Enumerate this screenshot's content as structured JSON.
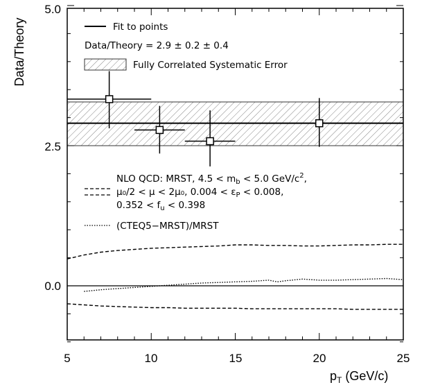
{
  "chart_data": {
    "type": "scatter",
    "xlabel": "p",
    "xlabel_sub": "T",
    "xlabel_unit": " (GeV/c)",
    "ylabel": "Data/Theory",
    "xlim": [
      5,
      25
    ],
    "ylim": [
      -1.3,
      5.0
    ],
    "x_ticks": [
      5,
      10,
      15,
      20,
      25
    ],
    "x_tick_labels": [
      "5",
      "10",
      "15",
      "20",
      "25"
    ],
    "y_tick_values": [
      0.0,
      2.5,
      5.0
    ],
    "y_tick_labels": [
      "0.0",
      "2.5",
      "5.0"
    ],
    "grid": false,
    "legend": {
      "fit": "Fit to points",
      "ratio": "Data/Theory = 2.9 ± 0.2 ± 0.4",
      "band": "Fully Correlated Systematic Error",
      "nlo_line1": "NLO QCD: MRST, 4.5 < m",
      "nlo_line1_sub": "b",
      "nlo_line1_tail": " < 5.0 GeV/c",
      "nlo_line1_sup": "2",
      "nlo_line1_end": ",",
      "nlo_line2": "μ₀/2 < μ < 2μ₀, 0.004 < ε",
      "nlo_line2_sub": "P",
      "nlo_line2_tail": " < 0.008,",
      "nlo_line3": "0.352 < f",
      "nlo_line3_sub": "u",
      "nlo_line3_tail": " < 0.398",
      "cteq": "(CTEQ5−MRST)/MRST"
    },
    "fit_value": 2.9,
    "band": [
      2.5,
      3.28
    ],
    "points": [
      {
        "x": 7.5,
        "y": 3.33,
        "xerr": 2.5,
        "yerr_low": 0.52,
        "yerr_high": 0.5
      },
      {
        "x": 10.5,
        "y": 2.78,
        "xerr": 1.5,
        "yerr_low": 0.42,
        "yerr_high": 0.43
      },
      {
        "x": 13.5,
        "y": 2.58,
        "xerr": 1.5,
        "yerr_low": 0.45,
        "yerr_high": 0.55
      },
      {
        "x": 20.0,
        "y": 2.9,
        "xerr": 5.0,
        "yerr_low": 0.42,
        "yerr_high": 0.45
      }
    ],
    "series": [
      {
        "name": "NLO QCD upper",
        "style": "dashed",
        "x": [
          5,
          6,
          7,
          8,
          9,
          10,
          11,
          12,
          13,
          14,
          15,
          16,
          17,
          18,
          19,
          20,
          21,
          22,
          23,
          24,
          25
        ],
        "y": [
          0.48,
          0.55,
          0.6,
          0.63,
          0.65,
          0.67,
          0.68,
          0.69,
          0.7,
          0.71,
          0.73,
          0.73,
          0.72,
          0.72,
          0.71,
          0.71,
          0.72,
          0.73,
          0.73,
          0.74,
          0.74
        ]
      },
      {
        "name": "NLO QCD lower",
        "style": "dashed",
        "x": [
          5,
          6,
          7,
          8,
          9,
          10,
          11,
          12,
          13,
          14,
          15,
          16,
          17,
          18,
          19,
          20,
          21,
          22,
          23,
          24,
          25
        ],
        "y": [
          -0.32,
          -0.34,
          -0.36,
          -0.37,
          -0.38,
          -0.39,
          -0.39,
          -0.4,
          -0.4,
          -0.4,
          -0.4,
          -0.41,
          -0.41,
          -0.41,
          -0.41,
          -0.41,
          -0.41,
          -0.42,
          -0.42,
          -0.42,
          -0.42
        ]
      },
      {
        "name": "(CTEQ5-MRST)/MRST",
        "style": "dotted",
        "x": [
          6,
          7,
          8,
          9,
          10,
          11,
          12,
          13,
          14,
          15,
          16,
          17,
          17.5,
          18,
          19,
          20,
          21,
          22,
          23,
          24,
          25
        ],
        "y": [
          -0.1,
          -0.07,
          -0.05,
          -0.03,
          -0.01,
          0.01,
          0.03,
          0.05,
          0.06,
          0.07,
          0.08,
          0.1,
          0.07,
          0.09,
          0.12,
          0.1,
          0.1,
          0.11,
          0.12,
          0.13,
          0.11
        ]
      }
    ]
  }
}
